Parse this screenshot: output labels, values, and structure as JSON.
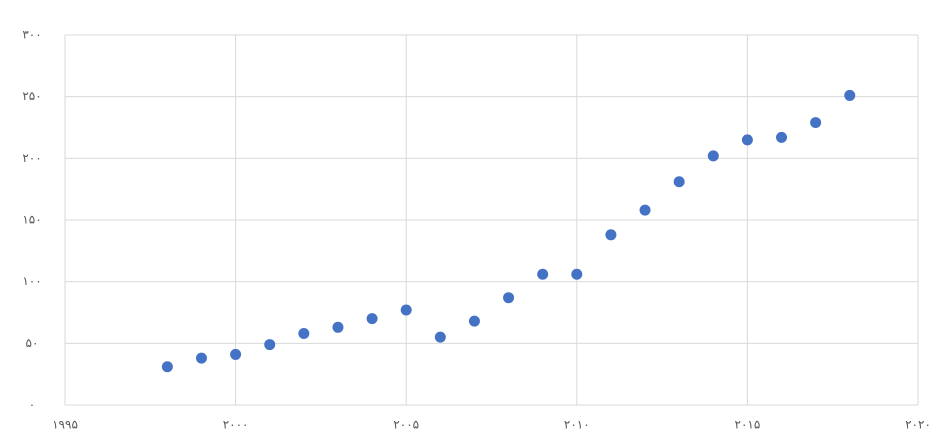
{
  "chart_data": {
    "type": "scatter",
    "x": [
      1998,
      1999,
      2000,
      2001,
      2002,
      2003,
      2004,
      2005,
      2006,
      2007,
      2008,
      2009,
      2010,
      2011,
      2012,
      2013,
      2014,
      2015,
      2016,
      2017,
      2018
    ],
    "values": [
      31,
      38,
      41,
      49,
      58,
      63,
      70,
      77,
      55,
      68,
      87,
      106,
      106,
      138,
      158,
      181,
      202,
      215,
      217,
      229,
      251
    ],
    "color": "#4472c4",
    "xlim": [
      1995,
      2020
    ],
    "xticks": [
      {
        "value": 1995,
        "label": "۱۹۹۵"
      },
      {
        "value": 2000,
        "label": "۲۰۰۰"
      },
      {
        "value": 2005,
        "label": "۲۰۰۵"
      },
      {
        "value": 2010,
        "label": "۲۰۱۰"
      },
      {
        "value": 2015,
        "label": "۲۰۱۵"
      },
      {
        "value": 2020,
        "label": "۲۰۲۰"
      }
    ],
    "ylim": [
      0,
      300
    ],
    "yticks": [
      {
        "value": 0,
        "label": "۰"
      },
      {
        "value": 50,
        "label": "۵۰"
      },
      {
        "value": 100,
        "label": "۱۰۰"
      },
      {
        "value": 150,
        "label": "۱۵۰"
      },
      {
        "value": 200,
        "label": "۲۰۰"
      },
      {
        "value": 250,
        "label": "۲۵۰"
      },
      {
        "value": 300,
        "label": "۳۰۰"
      }
    ],
    "grid": true
  }
}
